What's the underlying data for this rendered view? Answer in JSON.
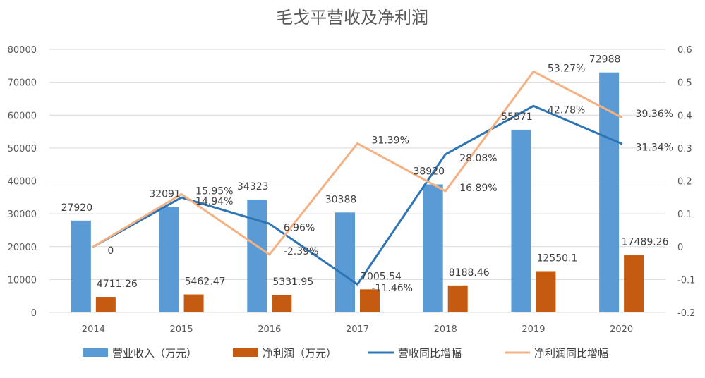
{
  "chart_data": {
    "type": "bar",
    "title": "毛戈平营收及净利润",
    "categories": [
      "2014",
      "2015",
      "2016",
      "2017",
      "2018",
      "2019",
      "2020"
    ],
    "left_axis": {
      "min": 0,
      "max": 80000,
      "step": 10000,
      "ticks": [
        "0",
        "10000",
        "20000",
        "30000",
        "40000",
        "50000",
        "60000",
        "70000",
        "80000"
      ]
    },
    "right_axis": {
      "min": -0.2,
      "max": 0.6,
      "step": 0.1,
      "ticks": [
        "-0.2",
        "-0.1",
        "0",
        "0.1",
        "0.2",
        "0.3",
        "0.4",
        "0.5",
        "0.6"
      ]
    },
    "grid": true,
    "legend_position": "bottom",
    "series": [
      {
        "name": "营业收入（万元）",
        "kind": "bar",
        "axis": "left",
        "color": "#5B9BD5",
        "values": [
          27920,
          32091,
          34323,
          30388,
          38920,
          55571,
          72988
        ],
        "labels": [
          "27920",
          "32091",
          "34323",
          "30388",
          "38920",
          "55571",
          "72988"
        ]
      },
      {
        "name": "净利润（万元）",
        "kind": "bar",
        "axis": "left",
        "color": "#C55A11",
        "values": [
          4711.26,
          5462.47,
          5331.95,
          7005.54,
          8188.46,
          12550.1,
          17489.26
        ],
        "labels": [
          "4711.26",
          "5462.47",
          "5331.95",
          "7005.54",
          "8188.46",
          "12550.1",
          "17489.26"
        ]
      },
      {
        "name": "营收同比增幅",
        "kind": "line",
        "axis": "right",
        "color": "#2E75B6",
        "values": [
          0,
          0.1494,
          0.0696,
          -0.1146,
          0.2808,
          0.4278,
          0.3134
        ],
        "labels": [
          "0",
          "14.94%",
          "6.96%",
          "-11.46%",
          "28.08%",
          "42.78%",
          "31.34%"
        ]
      },
      {
        "name": "净利润同比增幅",
        "kind": "line",
        "axis": "right",
        "color": "#F4B183",
        "values": [
          0,
          0.1595,
          -0.0239,
          0.3139,
          0.1689,
          0.5327,
          0.3936
        ],
        "labels": [
          "",
          "15.95%",
          "-2.39%",
          "31.39%",
          "16.89%",
          "53.27%",
          "39.36%"
        ]
      }
    ]
  }
}
